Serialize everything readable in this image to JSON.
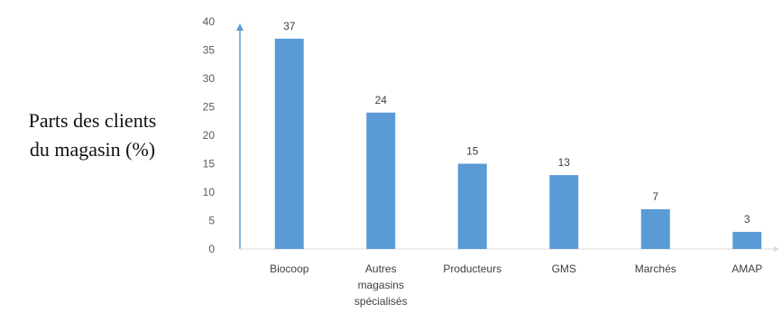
{
  "chart_data": {
    "type": "bar",
    "title": "",
    "xlabel": "",
    "ylabel_lines": [
      "Parts des clients",
      "du magasin (%)"
    ],
    "categories": [
      [
        "Biocoop"
      ],
      [
        "Autres",
        "magasins",
        "spécialisés"
      ],
      [
        "Producteurs"
      ],
      [
        "GMS"
      ],
      [
        "Marchés"
      ],
      [
        "AMAP"
      ]
    ],
    "values": [
      37,
      24,
      15,
      13,
      7,
      3
    ],
    "yticks": [
      0,
      5,
      10,
      15,
      20,
      25,
      30,
      35,
      40
    ],
    "ylim": [
      0,
      40
    ],
    "bar_color": "#5b9bd5",
    "axis_color": "#5b9bd5",
    "grid": false,
    "legend": "none"
  }
}
